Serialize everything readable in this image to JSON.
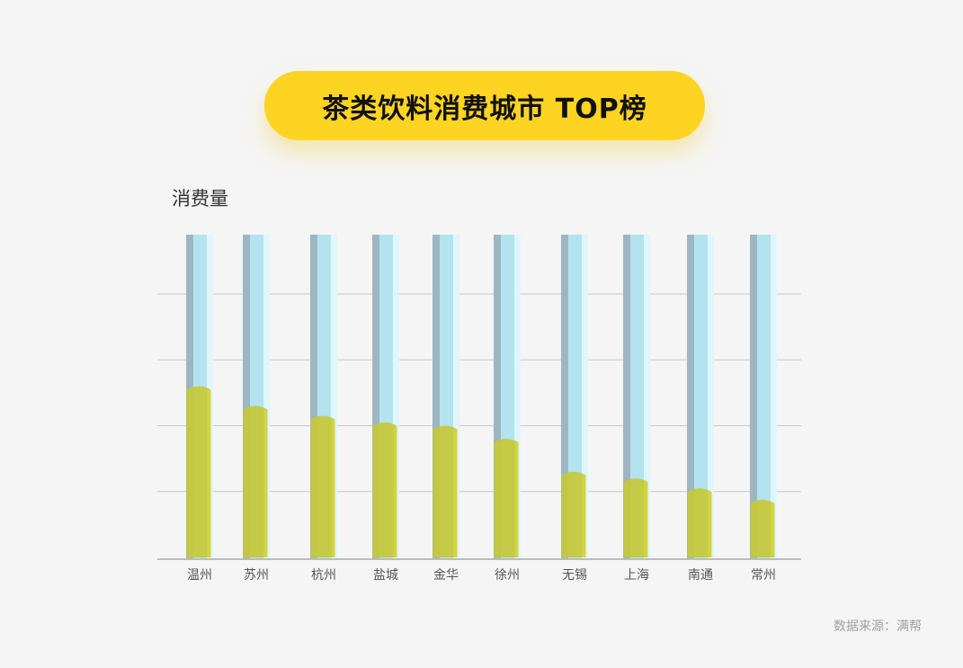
{
  "title": "茶类饮料消费城市 TOP榜",
  "source": "数据来源：满帮",
  "colors": {
    "background": "#f5f5f5",
    "title_pill": "#fdd422",
    "tube_dark": "#9eb6c2",
    "tube_mid": "#b3e3ef",
    "tube_light": "#dff6fa",
    "liquid": "#c6c83a",
    "liquid_top": "#d7d43e",
    "grid": "#c8c8c8",
    "tick_text": "#555555"
  },
  "chart_data": {
    "type": "bar",
    "title": "茶类饮料消费城市 TOP榜",
    "ylabel": "消费量",
    "xlabel": "",
    "categories": [
      "温州",
      "苏州",
      "杭州",
      "盐城",
      "金华",
      "徐州",
      "无锡",
      "上海",
      "南通",
      "常州"
    ],
    "values": [
      52,
      46,
      43,
      41,
      40,
      36,
      26,
      24,
      21,
      17.5
    ],
    "ylim": [
      0,
      98
    ],
    "grid": true,
    "gridlines": [
      20,
      40,
      60,
      80
    ]
  }
}
